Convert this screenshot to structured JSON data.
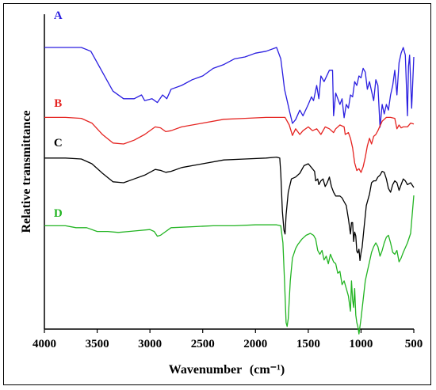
{
  "chart_data": {
    "type": "line",
    "xlabel": "Wavenumber",
    "xlabel_unit": "(cm⁻¹)",
    "ylabel": "Relative transmittance",
    "xlim": [
      4000,
      500
    ],
    "x_reversed": true,
    "xticks": [
      4000,
      3500,
      3000,
      2500,
      2000,
      1500,
      1000,
      500
    ],
    "xtick_labels": [
      "4000",
      "3500",
      "3000",
      "2500",
      "2000",
      "1500",
      "1000",
      "500"
    ],
    "y_ticks_shown": false,
    "grid": false,
    "series": [
      {
        "name": "A",
        "color": "#2a1ee0",
        "points": [
          [
            4000,
            0.1
          ],
          [
            3800,
            0.1
          ],
          [
            3650,
            0.1
          ],
          [
            3560,
            0.12
          ],
          [
            3450,
            0.23
          ],
          [
            3350,
            0.33
          ],
          [
            3250,
            0.37
          ],
          [
            3150,
            0.37
          ],
          [
            3080,
            0.35
          ],
          [
            3050,
            0.38
          ],
          [
            2980,
            0.37
          ],
          [
            2930,
            0.39
          ],
          [
            2880,
            0.35
          ],
          [
            2840,
            0.37
          ],
          [
            2800,
            0.32
          ],
          [
            2700,
            0.3
          ],
          [
            2600,
            0.27
          ],
          [
            2500,
            0.25
          ],
          [
            2400,
            0.21
          ],
          [
            2300,
            0.19
          ],
          [
            2200,
            0.16
          ],
          [
            2100,
            0.15
          ],
          [
            2000,
            0.13
          ],
          [
            1900,
            0.12
          ],
          [
            1800,
            0.1
          ],
          [
            1760,
            0.16
          ],
          [
            1740,
            0.25
          ],
          [
            1725,
            0.32
          ],
          [
            1700,
            0.38
          ],
          [
            1680,
            0.43
          ],
          [
            1650,
            0.5
          ],
          [
            1620,
            0.48
          ],
          [
            1580,
            0.43
          ],
          [
            1550,
            0.46
          ],
          [
            1500,
            0.4
          ],
          [
            1470,
            0.36
          ],
          [
            1450,
            0.38
          ],
          [
            1420,
            0.3
          ],
          [
            1400,
            0.37
          ],
          [
            1380,
            0.25
          ],
          [
            1350,
            0.28
          ],
          [
            1300,
            0.22
          ],
          [
            1270,
            0.22
          ],
          [
            1260,
            0.46
          ],
          [
            1240,
            0.34
          ],
          [
            1200,
            0.4
          ],
          [
            1180,
            0.37
          ],
          [
            1160,
            0.47
          ],
          [
            1140,
            0.4
          ],
          [
            1120,
            0.42
          ],
          [
            1100,
            0.35
          ],
          [
            1080,
            0.36
          ],
          [
            1060,
            0.28
          ],
          [
            1040,
            0.3
          ],
          [
            1020,
            0.25
          ],
          [
            1000,
            0.26
          ],
          [
            980,
            0.21
          ],
          [
            960,
            0.23
          ],
          [
            940,
            0.32
          ],
          [
            920,
            0.28
          ],
          [
            900,
            0.33
          ],
          [
            880,
            0.38
          ],
          [
            860,
            0.27
          ],
          [
            840,
            0.3
          ],
          [
            820,
            0.52
          ],
          [
            800,
            0.4
          ],
          [
            780,
            0.45
          ],
          [
            760,
            0.4
          ],
          [
            740,
            0.43
          ],
          [
            720,
            0.35
          ],
          [
            700,
            0.3
          ],
          [
            680,
            0.22
          ],
          [
            660,
            0.35
          ],
          [
            640,
            0.18
          ],
          [
            620,
            0.13
          ],
          [
            600,
            0.1
          ],
          [
            580,
            0.14
          ],
          [
            560,
            0.46
          ],
          [
            550,
            0.2
          ],
          [
            540,
            0.14
          ],
          [
            520,
            0.42
          ],
          [
            500,
            0.15
          ]
        ]
      },
      {
        "name": "B",
        "color": "#e52421",
        "points": [
          [
            4000,
            0.01
          ],
          [
            3800,
            0.01
          ],
          [
            3650,
            0.015
          ],
          [
            3550,
            0.04
          ],
          [
            3450,
            0.1
          ],
          [
            3350,
            0.145
          ],
          [
            3250,
            0.15
          ],
          [
            3150,
            0.13
          ],
          [
            3050,
            0.1
          ],
          [
            2950,
            0.06
          ],
          [
            2900,
            0.065
          ],
          [
            2850,
            0.085
          ],
          [
            2800,
            0.08
          ],
          [
            2700,
            0.06
          ],
          [
            2500,
            0.04
          ],
          [
            2300,
            0.02
          ],
          [
            2100,
            0.015
          ],
          [
            1900,
            0.01
          ],
          [
            1800,
            0.01
          ],
          [
            1720,
            0.01
          ],
          [
            1680,
            0.05
          ],
          [
            1650,
            0.105
          ],
          [
            1620,
            0.07
          ],
          [
            1580,
            0.1
          ],
          [
            1550,
            0.08
          ],
          [
            1500,
            0.06
          ],
          [
            1460,
            0.08
          ],
          [
            1420,
            0.07
          ],
          [
            1380,
            0.1
          ],
          [
            1340,
            0.06
          ],
          [
            1300,
            0.07
          ],
          [
            1260,
            0.09
          ],
          [
            1240,
            0.07
          ],
          [
            1200,
            0.05
          ],
          [
            1160,
            0.06
          ],
          [
            1150,
            0.1
          ],
          [
            1120,
            0.09
          ],
          [
            1100,
            0.12
          ],
          [
            1080,
            0.17
          ],
          [
            1060,
            0.25
          ],
          [
            1040,
            0.29
          ],
          [
            1020,
            0.28
          ],
          [
            1000,
            0.3
          ],
          [
            980,
            0.27
          ],
          [
            960,
            0.22
          ],
          [
            940,
            0.16
          ],
          [
            920,
            0.12
          ],
          [
            900,
            0.15
          ],
          [
            880,
            0.11
          ],
          [
            860,
            0.1
          ],
          [
            840,
            0.08
          ],
          [
            800,
            0.03
          ],
          [
            760,
            0.01
          ],
          [
            720,
            0.01
          ],
          [
            680,
            0.015
          ],
          [
            660,
            0.07
          ],
          [
            640,
            0.05
          ],
          [
            620,
            0.065
          ],
          [
            600,
            0.06
          ],
          [
            560,
            0.06
          ],
          [
            530,
            0.04
          ],
          [
            500,
            0.045
          ]
        ]
      },
      {
        "name": "C",
        "color": "#000000",
        "points": [
          [
            4000,
            0.02
          ],
          [
            3800,
            0.02
          ],
          [
            3650,
            0.025
          ],
          [
            3550,
            0.05
          ],
          [
            3450,
            0.1
          ],
          [
            3350,
            0.145
          ],
          [
            3250,
            0.15
          ],
          [
            3150,
            0.13
          ],
          [
            3050,
            0.11
          ],
          [
            2950,
            0.08
          ],
          [
            2900,
            0.085
          ],
          [
            2850,
            0.095
          ],
          [
            2800,
            0.09
          ],
          [
            2700,
            0.07
          ],
          [
            2500,
            0.05
          ],
          [
            2300,
            0.03
          ],
          [
            2100,
            0.025
          ],
          [
            1900,
            0.02
          ],
          [
            1800,
            0.015
          ],
          [
            1770,
            0.02
          ],
          [
            1760,
            0.1
          ],
          [
            1745,
            0.3
          ],
          [
            1730,
            0.4
          ],
          [
            1720,
            0.42
          ],
          [
            1710,
            0.32
          ],
          [
            1690,
            0.2
          ],
          [
            1660,
            0.13
          ],
          [
            1620,
            0.12
          ],
          [
            1580,
            0.1
          ],
          [
            1540,
            0.06
          ],
          [
            1500,
            0.05
          ],
          [
            1470,
            0.07
          ],
          [
            1440,
            0.09
          ],
          [
            1430,
            0.14
          ],
          [
            1410,
            0.13
          ],
          [
            1400,
            0.16
          ],
          [
            1380,
            0.14
          ],
          [
            1360,
            0.13
          ],
          [
            1340,
            0.17
          ],
          [
            1320,
            0.15
          ],
          [
            1300,
            0.12
          ],
          [
            1280,
            0.17
          ],
          [
            1260,
            0.2
          ],
          [
            1240,
            0.22
          ],
          [
            1200,
            0.22
          ],
          [
            1180,
            0.23
          ],
          [
            1160,
            0.25
          ],
          [
            1140,
            0.27
          ],
          [
            1120,
            0.34
          ],
          [
            1100,
            0.42
          ],
          [
            1090,
            0.36
          ],
          [
            1080,
            0.36
          ],
          [
            1070,
            0.46
          ],
          [
            1060,
            0.41
          ],
          [
            1050,
            0.43
          ],
          [
            1040,
            0.51
          ],
          [
            1030,
            0.52
          ],
          [
            1020,
            0.5
          ],
          [
            1010,
            0.56
          ],
          [
            1000,
            0.52
          ],
          [
            990,
            0.49
          ],
          [
            970,
            0.38
          ],
          [
            950,
            0.27
          ],
          [
            920,
            0.21
          ],
          [
            900,
            0.15
          ],
          [
            880,
            0.14
          ],
          [
            860,
            0.14
          ],
          [
            840,
            0.12
          ],
          [
            820,
            0.11
          ],
          [
            800,
            0.09
          ],
          [
            780,
            0.095
          ],
          [
            760,
            0.13
          ],
          [
            740,
            0.18
          ],
          [
            720,
            0.2
          ],
          [
            700,
            0.16
          ],
          [
            680,
            0.14
          ],
          [
            660,
            0.15
          ],
          [
            640,
            0.19
          ],
          [
            620,
            0.16
          ],
          [
            600,
            0.13
          ],
          [
            580,
            0.14
          ],
          [
            560,
            0.16
          ],
          [
            530,
            0.15
          ],
          [
            500,
            0.175
          ]
        ]
      },
      {
        "name": "D",
        "color": "#22b422",
        "points": [
          [
            4000,
            0.01
          ],
          [
            3800,
            0.01
          ],
          [
            3700,
            0.02
          ],
          [
            3600,
            0.02
          ],
          [
            3500,
            0.04
          ],
          [
            3400,
            0.04
          ],
          [
            3300,
            0.045
          ],
          [
            3200,
            0.04
          ],
          [
            3100,
            0.035
          ],
          [
            3000,
            0.03
          ],
          [
            2960,
            0.04
          ],
          [
            2930,
            0.065
          ],
          [
            2900,
            0.06
          ],
          [
            2850,
            0.04
          ],
          [
            2800,
            0.02
          ],
          [
            2600,
            0.015
          ],
          [
            2400,
            0.01
          ],
          [
            2200,
            0.01
          ],
          [
            2000,
            0.005
          ],
          [
            1800,
            0.005
          ],
          [
            1760,
            0.01
          ],
          [
            1740,
            0.1
          ],
          [
            1725,
            0.3
          ],
          [
            1710,
            0.52
          ],
          [
            1700,
            0.54
          ],
          [
            1690,
            0.5
          ],
          [
            1670,
            0.3
          ],
          [
            1650,
            0.18
          ],
          [
            1620,
            0.13
          ],
          [
            1600,
            0.11
          ],
          [
            1560,
            0.08
          ],
          [
            1520,
            0.06
          ],
          [
            1480,
            0.05
          ],
          [
            1450,
            0.06
          ],
          [
            1430,
            0.08
          ],
          [
            1410,
            0.14
          ],
          [
            1390,
            0.16
          ],
          [
            1370,
            0.14
          ],
          [
            1350,
            0.19
          ],
          [
            1330,
            0.17
          ],
          [
            1310,
            0.21
          ],
          [
            1290,
            0.16
          ],
          [
            1260,
            0.2
          ],
          [
            1240,
            0.21
          ],
          [
            1220,
            0.26
          ],
          [
            1200,
            0.25
          ],
          [
            1180,
            0.32
          ],
          [
            1160,
            0.3
          ],
          [
            1140,
            0.34
          ],
          [
            1120,
            0.38
          ],
          [
            1100,
            0.46
          ],
          [
            1090,
            0.3
          ],
          [
            1080,
            0.4
          ],
          [
            1070,
            0.44
          ],
          [
            1060,
            0.34
          ],
          [
            1050,
            0.48
          ],
          [
            1040,
            0.52
          ],
          [
            1030,
            0.54
          ],
          [
            1020,
            0.58
          ],
          [
            1010,
            0.54
          ],
          [
            1000,
            0.5
          ],
          [
            980,
            0.4
          ],
          [
            960,
            0.3
          ],
          [
            940,
            0.25
          ],
          [
            920,
            0.2
          ],
          [
            900,
            0.15
          ],
          [
            880,
            0.12
          ],
          [
            860,
            0.1
          ],
          [
            840,
            0.12
          ],
          [
            820,
            0.17
          ],
          [
            800,
            0.14
          ],
          [
            780,
            0.1
          ],
          [
            760,
            0.07
          ],
          [
            740,
            0.06
          ],
          [
            720,
            0.1
          ],
          [
            700,
            0.15
          ],
          [
            680,
            0.16
          ],
          [
            660,
            0.14
          ],
          [
            640,
            0.2
          ],
          [
            620,
            0.18
          ],
          [
            600,
            0.15
          ],
          [
            560,
            0.1
          ],
          [
            530,
            0.05
          ],
          [
            500,
            -0.15
          ]
        ]
      }
    ]
  }
}
